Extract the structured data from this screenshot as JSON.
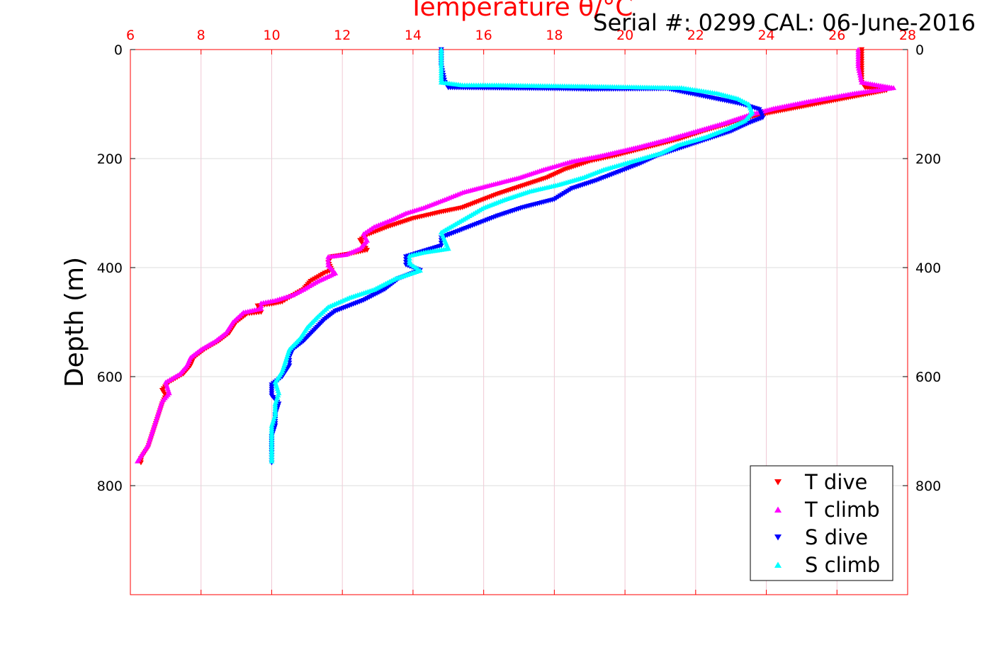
{
  "chart_data": {
    "type": "scatter",
    "title": "Serial #: 0299 CAL: 06-June-2016",
    "xlabel": "Temperature θ/°C",
    "ylabel": "Depth (m)",
    "xlim": [
      6,
      28
    ],
    "ylim": [
      0,
      1000
    ],
    "y_reversed": true,
    "x_ticks": [
      6,
      8,
      10,
      12,
      14,
      16,
      18,
      20,
      22,
      24,
      26,
      28
    ],
    "y_ticks": [
      0,
      200,
      400,
      600,
      800
    ],
    "grid": true,
    "legend_position": "bottom-right",
    "colors": {
      "axis_top": "#ff0000",
      "frame": "#ff0000",
      "grid": "#dddddd"
    },
    "series": [
      {
        "name": "T dive",
        "marker": "triangle-down",
        "color": "#ff0000",
        "points": [
          [
            26.7,
            0
          ],
          [
            26.7,
            30
          ],
          [
            26.7,
            60
          ],
          [
            26.8,
            70
          ],
          [
            27.4,
            75
          ],
          [
            26.2,
            90
          ],
          [
            25,
            105
          ],
          [
            23.8,
            120
          ],
          [
            23,
            135
          ],
          [
            22.2,
            150
          ],
          [
            21.5,
            165
          ],
          [
            20.6,
            180
          ],
          [
            19.7,
            195
          ],
          [
            19,
            205
          ],
          [
            18.3,
            220
          ],
          [
            17.8,
            235
          ],
          [
            17.1,
            250
          ],
          [
            16.4,
            265
          ],
          [
            15.8,
            280
          ],
          [
            15.4,
            290
          ],
          [
            14.8,
            298
          ],
          [
            14,
            310
          ],
          [
            13.3,
            325
          ],
          [
            12.7,
            340
          ],
          [
            12.5,
            350
          ],
          [
            12.7,
            368
          ],
          [
            12.2,
            375
          ],
          [
            11.7,
            380
          ],
          [
            11.6,
            390
          ],
          [
            11.7,
            405
          ],
          [
            11.5,
            410
          ],
          [
            11.1,
            425
          ],
          [
            10.9,
            440
          ],
          [
            10.5,
            455
          ],
          [
            10.3,
            463
          ],
          [
            10,
            467
          ],
          [
            9.6,
            470
          ],
          [
            9.7,
            482
          ],
          [
            9.3,
            485
          ],
          [
            9,
            500
          ],
          [
            8.8,
            520
          ],
          [
            8.5,
            535
          ],
          [
            8.1,
            550
          ],
          [
            7.8,
            565
          ],
          [
            7.7,
            580
          ],
          [
            7.5,
            595
          ],
          [
            7.1,
            610
          ],
          [
            6.9,
            625
          ],
          [
            7,
            635
          ],
          [
            6.9,
            650
          ],
          [
            6.8,
            670
          ],
          [
            6.7,
            690
          ],
          [
            6.6,
            710
          ],
          [
            6.5,
            730
          ],
          [
            6.3,
            750
          ],
          [
            6.3,
            758
          ]
        ]
      },
      {
        "name": "T climb",
        "marker": "triangle-up",
        "color": "#ff00ff",
        "points": [
          [
            26.6,
            0
          ],
          [
            26.6,
            30
          ],
          [
            26.7,
            60
          ],
          [
            27.6,
            70
          ],
          [
            26.5,
            80
          ],
          [
            25.2,
            95
          ],
          [
            24.2,
            108
          ],
          [
            23.5,
            120
          ],
          [
            22.8,
            135
          ],
          [
            22,
            150
          ],
          [
            21.2,
            165
          ],
          [
            20.3,
            180
          ],
          [
            19.3,
            195
          ],
          [
            18.5,
            205
          ],
          [
            17.7,
            220
          ],
          [
            17,
            235
          ],
          [
            16.1,
            250
          ],
          [
            15.4,
            262
          ],
          [
            14.9,
            275
          ],
          [
            14.3,
            290
          ],
          [
            13.8,
            300
          ],
          [
            13.4,
            312
          ],
          [
            12.9,
            325
          ],
          [
            12.6,
            338
          ],
          [
            12.7,
            350
          ],
          [
            12.5,
            365
          ],
          [
            12.1,
            376
          ],
          [
            11.6,
            380
          ],
          [
            11.6,
            395
          ],
          [
            11.8,
            410
          ],
          [
            11.3,
            425
          ],
          [
            10.9,
            440
          ],
          [
            10.6,
            450
          ],
          [
            10.1,
            460
          ],
          [
            9.7,
            465
          ],
          [
            9.7,
            475
          ],
          [
            9.2,
            482
          ],
          [
            8.9,
            500
          ],
          [
            8.7,
            520
          ],
          [
            8.4,
            535
          ],
          [
            8,
            550
          ],
          [
            7.7,
            565
          ],
          [
            7.6,
            580
          ],
          [
            7.4,
            595
          ],
          [
            7,
            610
          ],
          [
            7.1,
            630
          ],
          [
            6.9,
            645
          ],
          [
            6.8,
            665
          ],
          [
            6.7,
            685
          ],
          [
            6.6,
            705
          ],
          [
            6.5,
            725
          ],
          [
            6.3,
            745
          ],
          [
            6.2,
            755
          ]
        ]
      },
      {
        "name": "S dive",
        "marker": "triangle-down",
        "color": "#0000ff",
        "points": [
          [
            14.8,
            0
          ],
          [
            14.8,
            30
          ],
          [
            14.9,
            60
          ],
          [
            15,
            70
          ],
          [
            18.2,
            72
          ],
          [
            19,
            73
          ],
          [
            21.2,
            72
          ],
          [
            23.3,
            100
          ],
          [
            23.8,
            110
          ],
          [
            23.9,
            125
          ],
          [
            23.5,
            135
          ],
          [
            23,
            150
          ],
          [
            22.3,
            165
          ],
          [
            21.6,
            180
          ],
          [
            20.9,
            195
          ],
          [
            20.4,
            210
          ],
          [
            19.8,
            225
          ],
          [
            19.2,
            240
          ],
          [
            18.5,
            255
          ],
          [
            18,
            275
          ],
          [
            17.1,
            290
          ],
          [
            16.4,
            305
          ],
          [
            15.8,
            320
          ],
          [
            15.2,
            335
          ],
          [
            14.8,
            345
          ],
          [
            14.8,
            360
          ],
          [
            14.2,
            372
          ],
          [
            13.8,
            380
          ],
          [
            13.8,
            395
          ],
          [
            14.2,
            405
          ],
          [
            13.6,
            420
          ],
          [
            13.2,
            440
          ],
          [
            12.6,
            460
          ],
          [
            12.2,
            470
          ],
          [
            11.8,
            480
          ],
          [
            11.5,
            495
          ],
          [
            11.2,
            515
          ],
          [
            10.9,
            535
          ],
          [
            10.6,
            550
          ],
          [
            10.5,
            565
          ],
          [
            10.5,
            580
          ],
          [
            10.3,
            600
          ],
          [
            10,
            615
          ],
          [
            10,
            635
          ],
          [
            10.2,
            650
          ],
          [
            10.1,
            670
          ],
          [
            10.1,
            690
          ],
          [
            10,
            710
          ],
          [
            10,
            735
          ],
          [
            10,
            758
          ]
        ]
      },
      {
        "name": "S climb",
        "marker": "triangle-up",
        "color": "#00ffff",
        "points": [
          [
            14.8,
            0
          ],
          [
            14.8,
            30
          ],
          [
            14.8,
            60
          ],
          [
            15.4,
            65
          ],
          [
            16.3,
            65
          ],
          [
            17.3,
            66
          ],
          [
            18.6,
            67
          ],
          [
            21.6,
            70
          ],
          [
            22.6,
            80
          ],
          [
            23.2,
            90
          ],
          [
            23.5,
            100
          ],
          [
            23.6,
            115
          ],
          [
            23.4,
            130
          ],
          [
            22.9,
            145
          ],
          [
            22.3,
            160
          ],
          [
            21.5,
            175
          ],
          [
            21,
            190
          ],
          [
            20.2,
            205
          ],
          [
            19.4,
            220
          ],
          [
            18.8,
            235
          ],
          [
            18.1,
            248
          ],
          [
            17.3,
            260
          ],
          [
            16.6,
            275
          ],
          [
            16,
            290
          ],
          [
            15.6,
            305
          ],
          [
            15.2,
            320
          ],
          [
            14.8,
            335
          ],
          [
            14.9,
            350
          ],
          [
            15,
            365
          ],
          [
            14.3,
            372
          ],
          [
            13.9,
            378
          ],
          [
            13.9,
            392
          ],
          [
            14.2,
            405
          ],
          [
            13.5,
            420
          ],
          [
            12.9,
            440
          ],
          [
            12.2,
            455
          ],
          [
            11.6,
            472
          ],
          [
            11.3,
            490
          ],
          [
            11,
            510
          ],
          [
            10.8,
            530
          ],
          [
            10.5,
            550
          ],
          [
            10.4,
            570
          ],
          [
            10.3,
            590
          ],
          [
            10.1,
            610
          ],
          [
            10.2,
            630
          ],
          [
            10.1,
            650
          ],
          [
            10.1,
            670
          ],
          [
            10,
            690
          ],
          [
            10,
            710
          ],
          [
            10,
            735
          ],
          [
            10,
            755
          ]
        ]
      }
    ]
  }
}
